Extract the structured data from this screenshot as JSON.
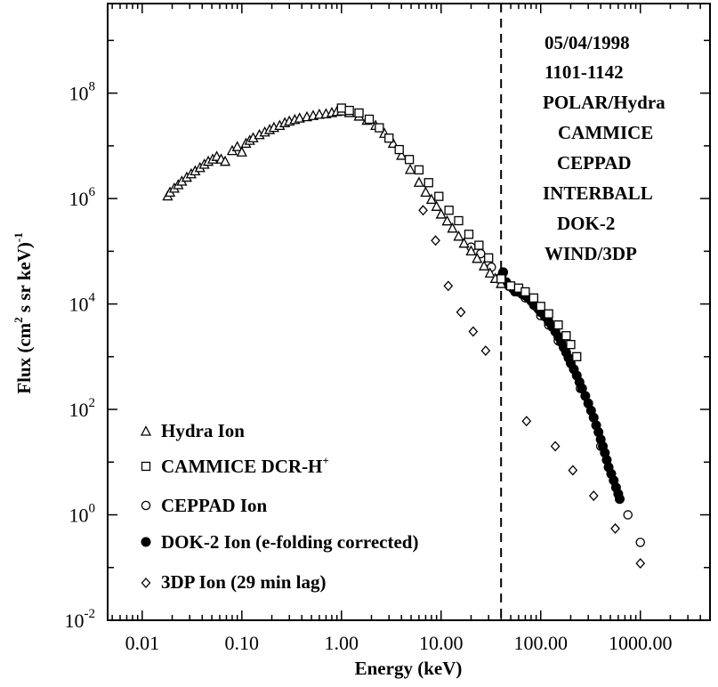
{
  "chart_data": {
    "type": "scatter",
    "xlabel": "Energy (keV)",
    "ylabel_main": "Flux (cm",
    "ylabel_sup1": "2",
    "ylabel_mid": " s sr keV)",
    "ylabel_sup2": "-1",
    "x_scale": "log",
    "y_scale": "log",
    "xlim": [
      0.0045,
      5000
    ],
    "ylim": [
      0.01,
      5000000000
    ],
    "x_ticks": [
      {
        "value": 0.01,
        "label": "0.01"
      },
      {
        "value": 0.1,
        "label": "0.10"
      },
      {
        "value": 1,
        "label": "1.00"
      },
      {
        "value": 10,
        "label": "10.00"
      },
      {
        "value": 100,
        "label": "100.00"
      },
      {
        "value": 1000,
        "label": "1000.00"
      }
    ],
    "y_ticks": [
      {
        "value": 0.01,
        "base": "10",
        "exp": "-2"
      },
      {
        "value": 1,
        "base": "10",
        "exp": "0"
      },
      {
        "value": 100,
        "base": "10",
        "exp": "2"
      },
      {
        "value": 10000,
        "base": "10",
        "exp": "4"
      },
      {
        "value": 1000000,
        "base": "10",
        "exp": "6"
      },
      {
        "value": 100000000,
        "base": "10",
        "exp": "8"
      }
    ],
    "vline_x": 40,
    "grid": false,
    "legend_position": "bottom-left",
    "annotations": [
      "05/04/1998",
      "1101-1142",
      "POLAR/Hydra",
      "CAMMICE",
      "CEPPAD",
      "INTERBALL",
      "DOK-2",
      "WIND/3DP"
    ],
    "series": [
      {
        "name": "Hydra Ion",
        "marker": "triangle",
        "points": [
          [
            0.018,
            1100000
          ],
          [
            0.019,
            1300000
          ],
          [
            0.021,
            1550000
          ],
          [
            0.023,
            1800000
          ],
          [
            0.025,
            2100000
          ],
          [
            0.028,
            2500000
          ],
          [
            0.031,
            2900000
          ],
          [
            0.034,
            3300000
          ],
          [
            0.038,
            3800000
          ],
          [
            0.042,
            4400000
          ],
          [
            0.046,
            5000000
          ],
          [
            0.051,
            5500000
          ],
          [
            0.056,
            6200000
          ],
          [
            0.062,
            5500000
          ],
          [
            0.068,
            5000000
          ],
          [
            0.08,
            8000000
          ],
          [
            0.09,
            9500000
          ],
          [
            0.1,
            7500000
          ],
          [
            0.11,
            11000000
          ],
          [
            0.12,
            12500000
          ],
          [
            0.13,
            14000000
          ],
          [
            0.15,
            16000000
          ],
          [
            0.17,
            18000000
          ],
          [
            0.19,
            20000000
          ],
          [
            0.21,
            22000000
          ],
          [
            0.24,
            24000000
          ],
          [
            0.27,
            27000000
          ],
          [
            0.3,
            29000000
          ],
          [
            0.34,
            31000000
          ],
          [
            0.38,
            33000000
          ],
          [
            0.45,
            35000000
          ],
          [
            0.52,
            37000000
          ],
          [
            0.6,
            39000000
          ],
          [
            0.7,
            40000000
          ],
          [
            0.8,
            42000000
          ],
          [
            0.9,
            44000000
          ],
          [
            1.0,
            45000000
          ],
          [
            1.2,
            42000000
          ],
          [
            1.5,
            36000000
          ],
          [
            1.8,
            30000000
          ],
          [
            2.2,
            24000000
          ],
          [
            2.7,
            17000000
          ],
          [
            3.3,
            11000000
          ],
          [
            4.0,
            6500000
          ],
          [
            4.9,
            3500000
          ],
          [
            6.0,
            2000000
          ],
          [
            7.0,
            1300000
          ],
          [
            8.0,
            950000
          ],
          [
            9.0,
            700000
          ],
          [
            10.0,
            500000
          ],
          [
            11.5,
            370000
          ],
          [
            13.0,
            270000
          ],
          [
            15.0,
            190000
          ],
          [
            17.0,
            140000
          ],
          [
            20.0,
            100000
          ],
          [
            23.0,
            72000
          ],
          [
            27.0,
            52000
          ],
          [
            31.0,
            38000
          ],
          [
            35.0,
            30000
          ],
          [
            40.0,
            24000
          ]
        ]
      },
      {
        "name": "CAMMICE DCR-H",
        "name_sup": "+",
        "marker": "square",
        "points": [
          [
            1.0,
            52000000
          ],
          [
            1.2,
            47000000
          ],
          [
            1.5,
            42000000
          ],
          [
            1.9,
            32000000
          ],
          [
            2.4,
            22000000
          ],
          [
            3.0,
            14000000
          ],
          [
            3.8,
            8500000
          ],
          [
            4.8,
            5500000
          ],
          [
            6.0,
            3500000
          ],
          [
            7.5,
            2000000
          ],
          [
            9.5,
            1100000
          ],
          [
            12.0,
            600000
          ],
          [
            15.0,
            380000
          ],
          [
            19.0,
            210000
          ],
          [
            24.0,
            130000
          ],
          [
            30.0,
            75000
          ],
          [
            40.0,
            30000
          ],
          [
            50.0,
            22000
          ],
          [
            60.0,
            20000
          ],
          [
            70.0,
            17000
          ],
          [
            85.0,
            13000
          ],
          [
            100.0,
            9000
          ],
          [
            120.0,
            6500
          ],
          [
            150.0,
            4000
          ],
          [
            180.0,
            2500
          ],
          [
            200.0,
            1700
          ],
          [
            230.0,
            1000
          ]
        ]
      },
      {
        "name": "CEPPAD Ion",
        "marker": "circle",
        "points": [
          [
            20.0,
            120000
          ],
          [
            25.0,
            90000
          ],
          [
            32.0,
            50000
          ],
          [
            41.0,
            36000
          ],
          [
            55.0,
            17000
          ],
          [
            70.0,
            13000
          ],
          [
            85.0,
            9500
          ],
          [
            100.0,
            6000
          ],
          [
            120.0,
            4000
          ],
          [
            150.0,
            2000
          ],
          [
            250.0,
            250
          ],
          [
            400.0,
            20
          ],
          [
            750.0,
            1.0
          ],
          [
            1000.0,
            0.3
          ]
        ]
      },
      {
        "name": "DOK-2 Ion (e-folding corrected)",
        "marker": "filled-circle",
        "points": [
          [
            42.0,
            40000
          ],
          [
            45.0,
            26000
          ],
          [
            48.0,
            22000
          ],
          [
            52.0,
            20000
          ],
          [
            55.0,
            18000
          ],
          [
            60.0,
            17000
          ],
          [
            65.0,
            15500
          ],
          [
            70.0,
            14500
          ],
          [
            75.0,
            13000
          ],
          [
            80.0,
            11500
          ],
          [
            85.0,
            10000
          ],
          [
            90.0,
            9000
          ],
          [
            95.0,
            8000
          ],
          [
            100.0,
            7000
          ],
          [
            110.0,
            5800
          ],
          [
            120.0,
            4600
          ],
          [
            130.0,
            3700
          ],
          [
            140.0,
            3000
          ],
          [
            150.0,
            2400
          ],
          [
            160.0,
            1900
          ],
          [
            170.0,
            1500
          ],
          [
            180.0,
            1200
          ],
          [
            190.0,
            950
          ],
          [
            200.0,
            750
          ],
          [
            215.0,
            580
          ],
          [
            230.0,
            440
          ],
          [
            245.0,
            330
          ],
          [
            260.0,
            250
          ],
          [
            280.0,
            180
          ],
          [
            300.0,
            130
          ],
          [
            320.0,
            95
          ],
          [
            340.0,
            70
          ],
          [
            360.0,
            50
          ],
          [
            380.0,
            37
          ],
          [
            400.0,
            27
          ],
          [
            420.0,
            20
          ],
          [
            440.0,
            15
          ],
          [
            460.0,
            11
          ],
          [
            480.0,
            8
          ],
          [
            510.0,
            6
          ],
          [
            540.0,
            4.5
          ],
          [
            570.0,
            3.3
          ],
          [
            600.0,
            2.5
          ],
          [
            620.0,
            2.0
          ]
        ]
      },
      {
        "name": "3DP Ion (29 min lag)",
        "marker": "diamond",
        "points": [
          [
            6.6,
            600000
          ],
          [
            8.8,
            160000
          ],
          [
            11.8,
            22000
          ],
          [
            15.8,
            7000
          ],
          [
            21.0,
            3000
          ],
          [
            28.0,
            1300
          ],
          [
            72.0,
            60
          ],
          [
            140.0,
            20
          ],
          [
            210.0,
            7
          ],
          [
            340.0,
            2.3
          ],
          [
            560.0,
            0.55
          ],
          [
            1000.0,
            0.12
          ]
        ]
      }
    ]
  }
}
